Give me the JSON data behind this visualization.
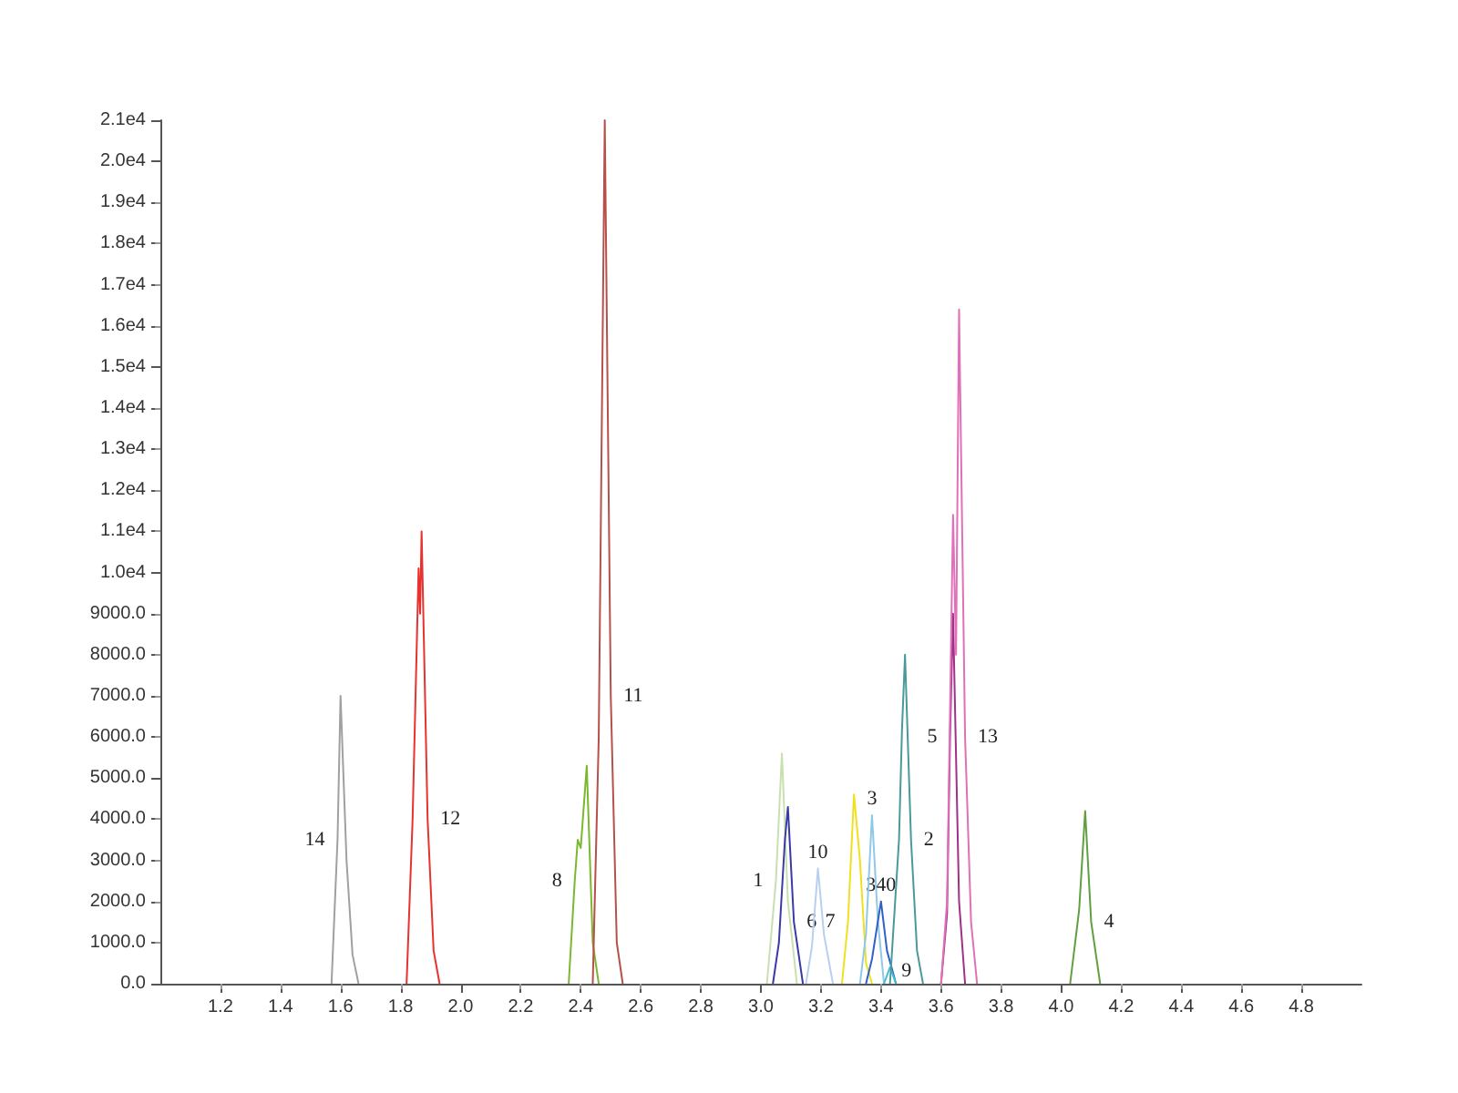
{
  "chart_data": {
    "type": "line",
    "marker": "none",
    "line_style": "solid",
    "grid": false,
    "xlim": [
      1.0,
      5.0
    ],
    "xticks": [
      1.2,
      1.4,
      1.6,
      1.8,
      {
        "value": 2.0,
        "label": "2.0"
      },
      2.2,
      2.4,
      2.6,
      2.8,
      {
        "value": 3.0,
        "label": "3.0"
      },
      3.2,
      3.4,
      3.6,
      3.8,
      {
        "value": 4.0,
        "label": "4.0"
      },
      4.2,
      4.4,
      4.6,
      4.8
    ],
    "ylim": [
      0,
      21000
    ],
    "yticks": [
      {
        "value": 0,
        "label": "0.0"
      },
      {
        "value": 1000,
        "label": "1000.0"
      },
      {
        "value": 2000,
        "label": "2000.0"
      },
      {
        "value": 3000,
        "label": "3000.0"
      },
      {
        "value": 4000,
        "label": "4000.0"
      },
      {
        "value": 5000,
        "label": "5000.0"
      },
      {
        "value": 6000,
        "label": "6000.0"
      },
      {
        "value": 7000,
        "label": "7000.0"
      },
      {
        "value": 8000,
        "label": "8000.0"
      },
      {
        "value": 9000,
        "label": "9000.0"
      },
      {
        "value": 10000,
        "label": "1.0e4"
      },
      {
        "value": 11000,
        "label": "1.1e4"
      },
      {
        "value": 12000,
        "label": "1.2e4"
      },
      {
        "value": 13000,
        "label": "1.3e4"
      },
      {
        "value": 14000,
        "label": "1.4e4"
      },
      {
        "value": 15000,
        "label": "1.5e4"
      },
      {
        "value": 16000,
        "label": "1.6e4"
      },
      {
        "value": 17000,
        "label": "1.7e4"
      },
      {
        "value": 18000,
        "label": "1.8e4"
      },
      {
        "value": 19000,
        "label": "1.9e4"
      },
      {
        "value": 20000,
        "label": "2.0e4"
      },
      {
        "value": 21000,
        "label": "2.1e4"
      }
    ],
    "series": [
      {
        "color": "#a0a0a0",
        "x": [
          1.57,
          1.59,
          1.6,
          1.62,
          1.64,
          1.66
        ],
        "values": [
          0,
          3500,
          7000,
          3000,
          700,
          0
        ]
      },
      {
        "color": "#e8322f",
        "x": [
          1.82,
          1.84,
          1.86,
          1.865,
          1.87,
          1.89,
          1.91,
          1.93
        ],
        "values": [
          0,
          4000,
          10100,
          9000,
          11000,
          4000,
          800,
          0
        ]
      },
      {
        "color": "#7ab82e",
        "x": [
          2.36,
          2.38,
          2.39,
          2.4,
          2.42,
          2.44,
          2.46
        ],
        "values": [
          0,
          2500,
          3500,
          3300,
          5300,
          1000,
          0
        ]
      },
      {
        "color": "#b5504a",
        "x": [
          2.44,
          2.46,
          2.48,
          2.5,
          2.52,
          2.54
        ],
        "values": [
          0,
          6000,
          21000,
          7000,
          1000,
          0
        ]
      },
      {
        "color": "#c8e0b0",
        "x": [
          3.02,
          3.05,
          3.07,
          3.09,
          3.12
        ],
        "values": [
          0,
          2500,
          5600,
          2000,
          0
        ]
      },
      {
        "color": "#3a3aa8",
        "x": [
          3.04,
          3.06,
          3.08,
          3.09,
          3.11,
          3.14
        ],
        "values": [
          0,
          1000,
          3500,
          4300,
          1500,
          0
        ]
      },
      {
        "color": "#b8d0f0",
        "x": [
          3.15,
          3.17,
          3.19,
          3.21,
          3.24
        ],
        "values": [
          0,
          900,
          2800,
          1200,
          0
        ]
      },
      {
        "color": "#f0e020",
        "x": [
          3.27,
          3.29,
          3.31,
          3.33,
          3.35,
          3.37
        ],
        "values": [
          0,
          1500,
          4600,
          3000,
          500,
          0
        ]
      },
      {
        "color": "#90c8e8",
        "x": [
          3.33,
          3.35,
          3.37,
          3.39,
          3.41
        ],
        "values": [
          0,
          1200,
          4100,
          1500,
          0
        ]
      },
      {
        "color": "#3060c8",
        "x": [
          3.35,
          3.37,
          3.4,
          3.42,
          3.45
        ],
        "values": [
          0,
          600,
          2000,
          800,
          0
        ]
      },
      {
        "color": "#40c0d0",
        "x": [
          3.41,
          3.43,
          3.45
        ],
        "values": [
          0,
          400,
          0
        ]
      },
      {
        "color": "#4a9a9a",
        "x": [
          3.43,
          3.46,
          3.47,
          3.48,
          3.5,
          3.52,
          3.54
        ],
        "values": [
          0,
          3500,
          6200,
          8000,
          3500,
          800,
          0
        ]
      },
      {
        "color": "#a0308a",
        "x": [
          3.6,
          3.62,
          3.63,
          3.64,
          3.66,
          3.68
        ],
        "values": [
          0,
          1700,
          6000,
          9000,
          2000,
          0
        ]
      },
      {
        "color": "#e070b8",
        "x": [
          3.6,
          3.62,
          3.64,
          3.65,
          3.66,
          3.68,
          3.7,
          3.72
        ],
        "values": [
          0,
          2000,
          11400,
          8000,
          16400,
          6000,
          1500,
          0
        ]
      },
      {
        "color": "#60a040",
        "x": [
          4.03,
          4.06,
          4.08,
          4.1,
          4.13
        ],
        "values": [
          0,
          1800,
          4200,
          1500,
          0
        ]
      }
    ],
    "annotations": [
      {
        "text": "14",
        "x": 1.59,
        "y": 3500
      },
      {
        "text": "12",
        "x": 1.89,
        "y": 4000
      },
      {
        "text": "8",
        "x": 2.38,
        "y": 2500
      },
      {
        "text": "11",
        "x": 2.5,
        "y": 7000
      },
      {
        "text": "1",
        "x": 3.05,
        "y": 2500
      },
      {
        "text": "6",
        "x": 3.11,
        "y": 1500
      },
      {
        "text": "10",
        "x": 3.19,
        "y": 2800
      },
      {
        "text": "7",
        "x": 3.29,
        "y": 1500
      },
      {
        "text": "3",
        "x": 3.37,
        "y": 4100
      },
      {
        "text": "340",
        "x": 3.4,
        "y": 2000
      },
      {
        "text": "9",
        "x": 3.45,
        "y": 0
      },
      {
        "text": "2",
        "x": 3.5,
        "y": 3500
      },
      {
        "text": "5",
        "x": 3.63,
        "y": 6000
      },
      {
        "text": "13",
        "x": 3.68,
        "y": 6000
      },
      {
        "text": "4",
        "x": 4.1,
        "y": 1500
      }
    ]
  }
}
